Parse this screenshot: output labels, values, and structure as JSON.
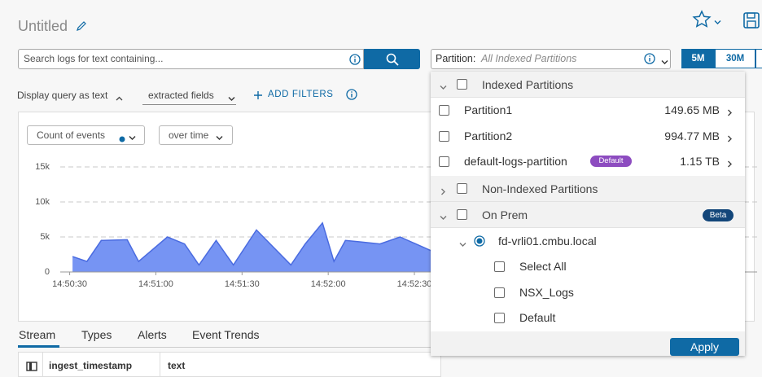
{
  "header": {
    "title": "Untitled"
  },
  "search": {
    "placeholder": "Search logs for text containing..."
  },
  "partition_select": {
    "label": "Partition:",
    "value": "All Indexed Partitions"
  },
  "time_ranges": [
    "5M",
    "30M"
  ],
  "query_bar": {
    "display_query": "Display query as text",
    "fields": "extracted fields",
    "add_filters": "ADD FILTERS"
  },
  "chart_controls": {
    "metric": "Count of events",
    "grouping": "over time"
  },
  "chart_data": {
    "type": "area",
    "color": "#6f8ef2",
    "grid": true,
    "x": [
      1,
      6,
      11,
      20,
      24,
      34,
      40,
      45,
      51,
      57,
      65,
      77,
      82,
      88,
      92,
      96,
      101,
      108,
      115,
      126
    ],
    "values": [
      2200,
      1500,
      4500,
      4600,
      1500,
      5000,
      4000,
      1000,
      4500,
      1000,
      6000,
      1000,
      4000,
      7000,
      1500,
      4500,
      4300,
      4000,
      5000,
      3000
    ],
    "xlim": [
      -3,
      241
    ],
    "ylim": [
      0,
      15000
    ],
    "xticks": [
      {
        "value": 0,
        "label": "14:50:30"
      },
      {
        "value": 30,
        "label": "14:51:00"
      },
      {
        "value": 60,
        "label": "14:51:30"
      },
      {
        "value": 90,
        "label": "14:52:00"
      },
      {
        "value": 120,
        "label": "14:52:30"
      }
    ],
    "yticks": [
      0,
      {
        "value": 5000,
        "label": "5k"
      },
      {
        "value": 10000,
        "label": "10k"
      },
      {
        "value": 15000,
        "label": "15k"
      }
    ]
  },
  "tabs": [
    "Stream",
    "Types",
    "Alerts",
    "Event Trends"
  ],
  "table": {
    "columns": [
      "ingest_timestamp",
      "text"
    ]
  },
  "partition_panel": {
    "indexed": {
      "name": "Indexed Partitions",
      "items": [
        {
          "name": "Partition1",
          "size": "149.65 MB"
        },
        {
          "name": "Partition2",
          "size": "994.77 MB"
        },
        {
          "name": "default-logs-partition",
          "badge": "Default",
          "size": "1.15 TB"
        }
      ]
    },
    "non_indexed": {
      "name": "Non-Indexed Partitions"
    },
    "on_prem": {
      "name": "On Prem",
      "badge": "Beta",
      "host": "fd-vrli01.cmbu.local",
      "options": [
        "Select All",
        "NSX_Logs",
        "Default"
      ]
    },
    "apply": "Apply"
  }
}
